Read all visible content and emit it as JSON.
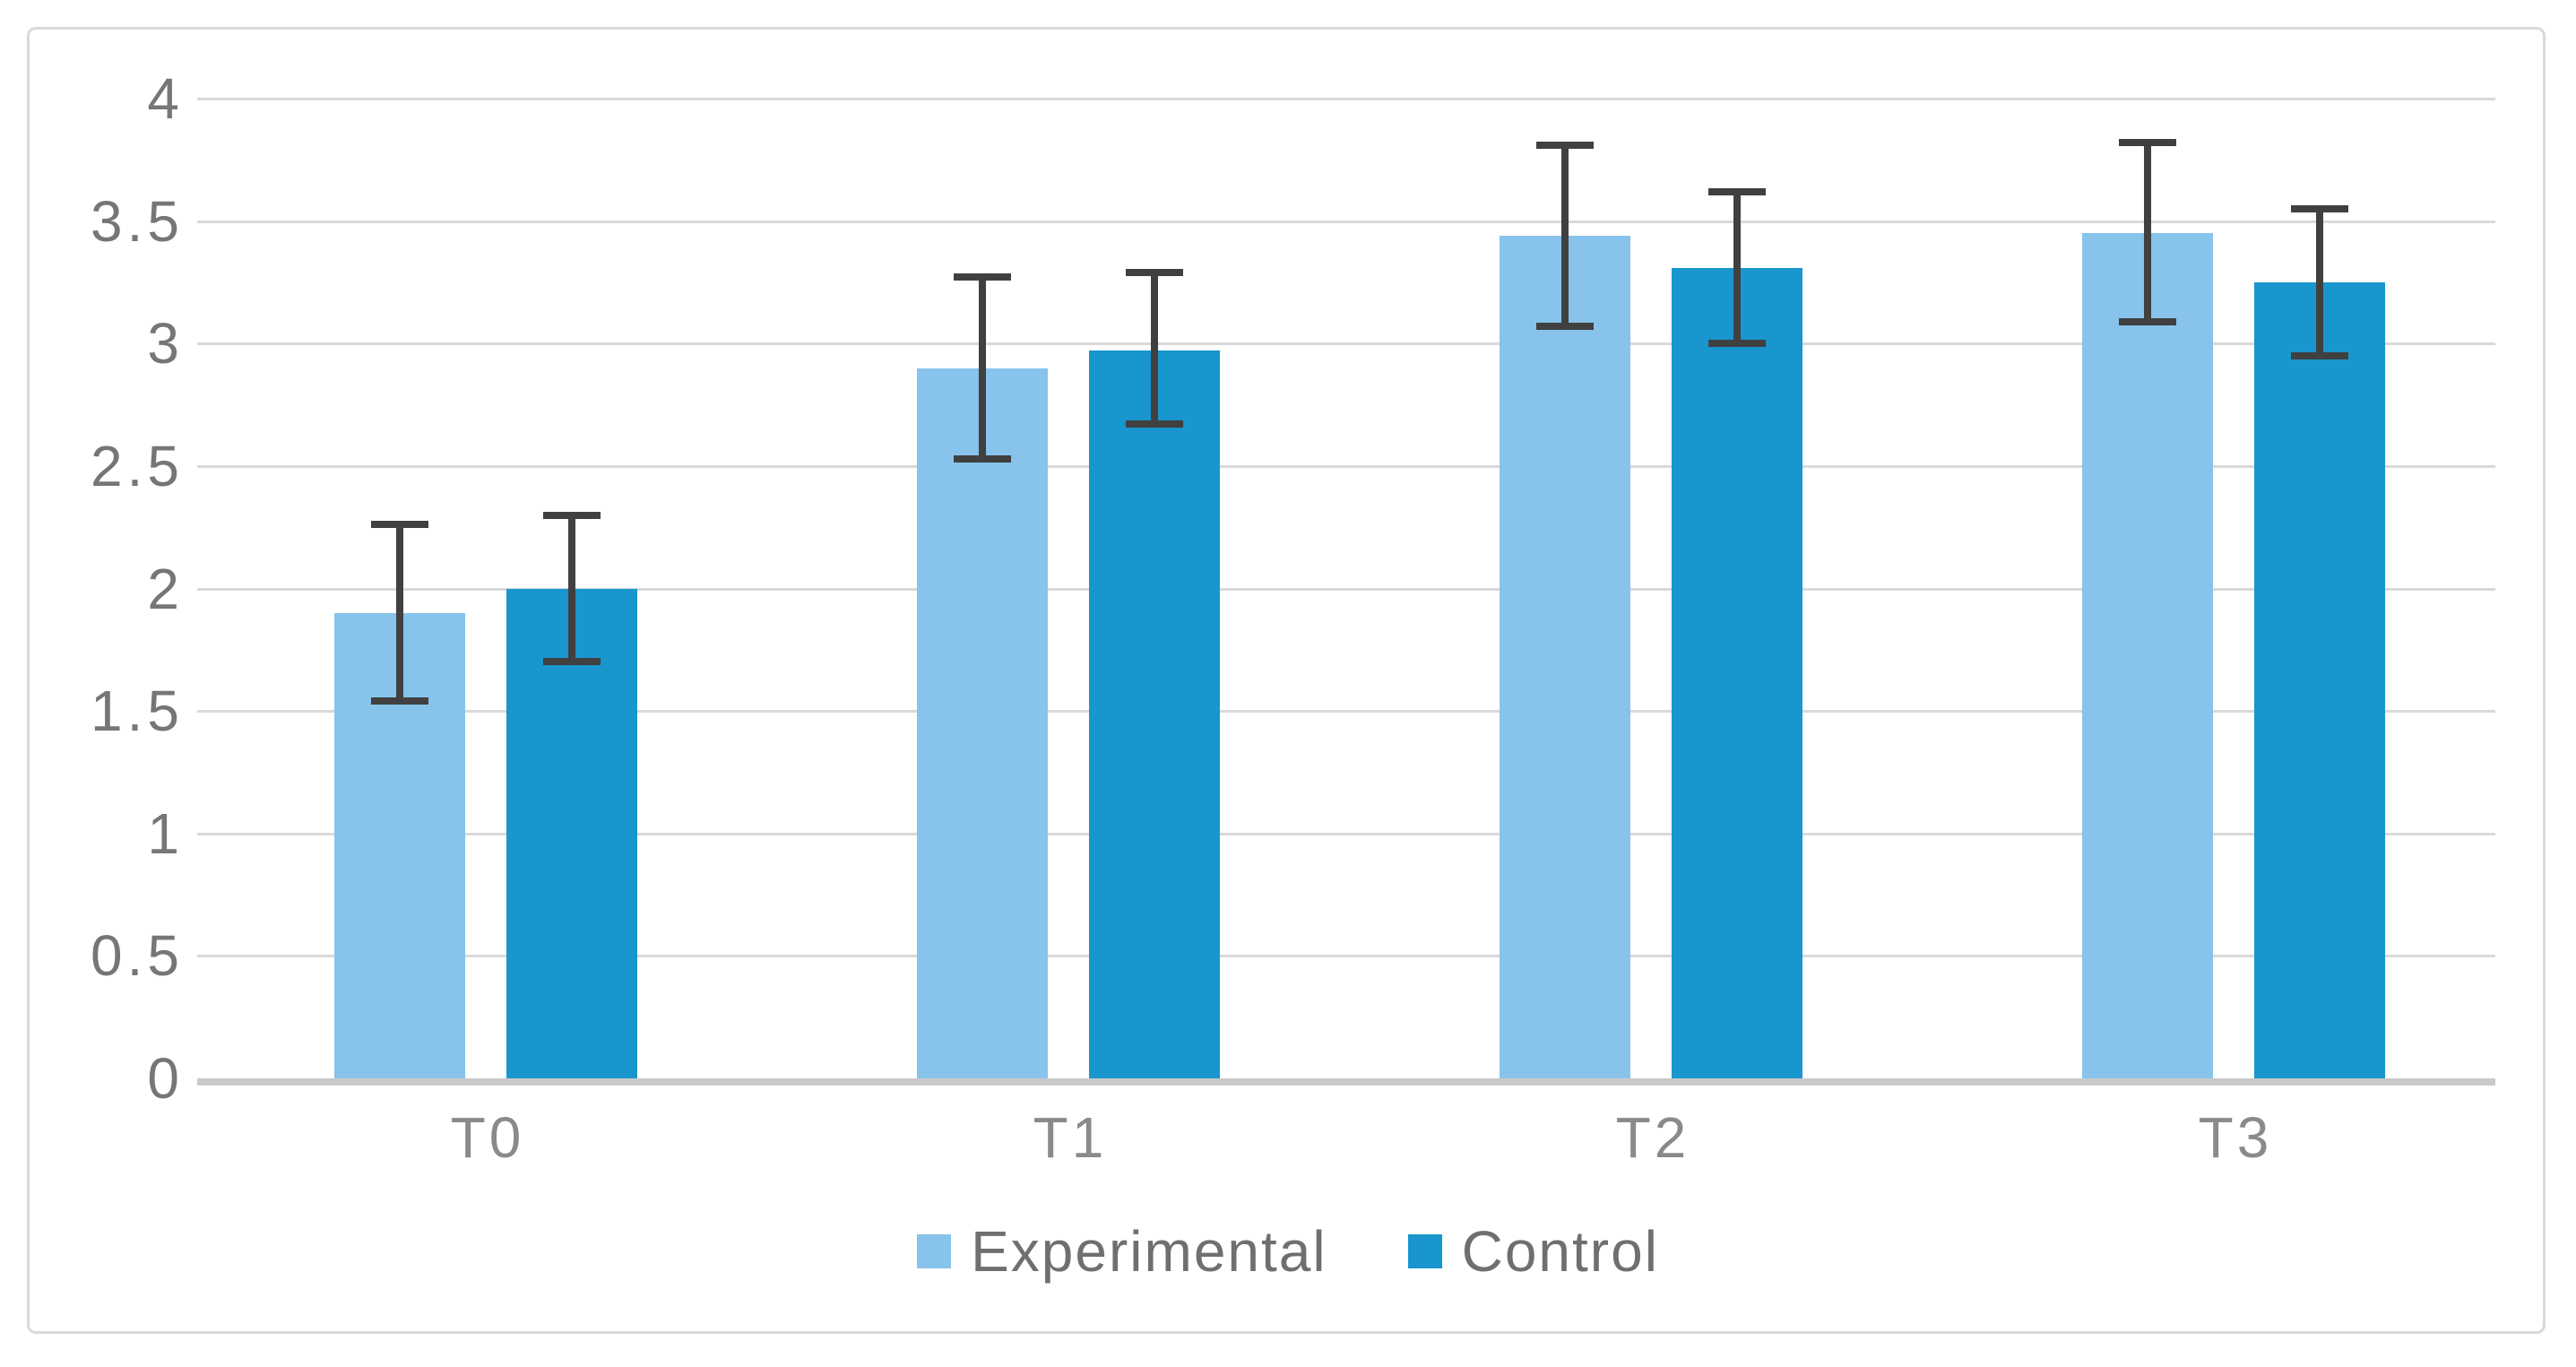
{
  "chart_data": {
    "type": "bar",
    "title": "",
    "xlabel": "",
    "ylabel": "",
    "categories": [
      "T0",
      "T1",
      "T2",
      "T3"
    ],
    "series": [
      {
        "name": "Experimental",
        "color": "#87C3EB",
        "values": [
          1.9,
          2.9,
          3.44,
          3.45
        ],
        "error_low": [
          1.54,
          2.53,
          3.07,
          3.09
        ],
        "error_high": [
          2.26,
          3.27,
          3.81,
          3.82
        ]
      },
      {
        "name": "Control",
        "color": "#1996CD",
        "values": [
          2.0,
          2.97,
          3.31,
          3.25
        ],
        "error_low": [
          1.7,
          2.67,
          3.0,
          2.95
        ],
        "error_high": [
          2.3,
          3.29,
          3.62,
          3.55
        ]
      }
    ],
    "ylim": [
      0,
      4
    ],
    "ytick_step": 0.5,
    "ytick_labels": [
      "4",
      "3.5",
      "3",
      "2.5",
      "2",
      "1.5",
      "1",
      "0.5",
      "0"
    ],
    "grid": true,
    "legend_position": "bottom-center",
    "colors": {
      "gridline": "#D9D9D9",
      "axis_baseline": "#C9C9C9",
      "error_bar": "#404040",
      "ytick_text": "#767676",
      "xtick_text": "#8A8A8A",
      "legend_text": "#6F6F6F",
      "chart_border": "#D9D9D9",
      "background": "#FFFFFF"
    }
  }
}
